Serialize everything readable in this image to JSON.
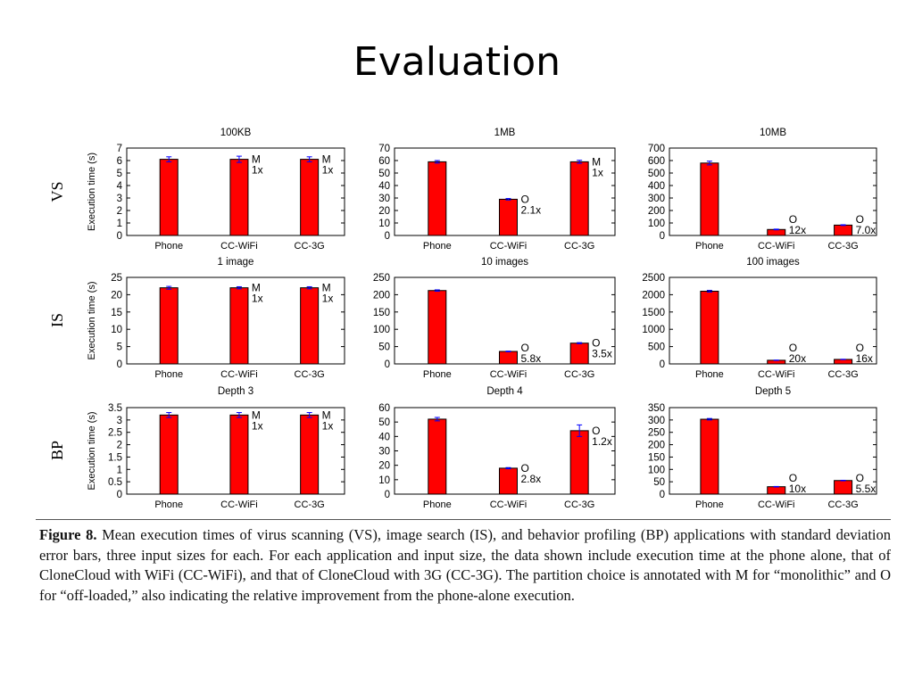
{
  "slide": {
    "title": "Evaluation"
  },
  "figure": {
    "row_labels": [
      "VS",
      "IS",
      "BP"
    ],
    "y_axis_label": "Execution time (s)",
    "caption_label": "Figure 8.",
    "caption_text": "Mean execution times of virus scanning (VS), image search (IS), and behavior profiling (BP) applications with standard deviation error bars, three input sizes for each. For each application and input size, the data shown include execution time at the phone alone, that of CloneCloud with WiFi (CC-WiFi), and that of CloneCloud with 3G (CC-3G). The partition choice is annotated with M for “monolithic” and O for “off-loaded,” also indicating the relative improvement from the phone-alone execution."
  },
  "colors": {
    "bar": "#ff0000",
    "bar_edge": "#000000",
    "error_bar": "#0000ff"
  },
  "chart_data": [
    {
      "type": "bar",
      "row": "VS",
      "title": "100KB",
      "ylabel": "Execution time (s)",
      "categories": [
        "Phone",
        "CC-WiFi",
        "CC-3G"
      ],
      "values": [
        6.1,
        6.1,
        6.1
      ],
      "errors": [
        0.2,
        0.25,
        0.2
      ],
      "ylim": [
        0,
        7
      ],
      "yticks": [
        0,
        1,
        2,
        3,
        4,
        5,
        6,
        7
      ],
      "annotations": [
        null,
        {
          "choice": "M",
          "factor": "1x"
        },
        {
          "choice": "M",
          "factor": "1x"
        }
      ]
    },
    {
      "type": "bar",
      "row": "VS",
      "title": "1MB",
      "ylabel": "",
      "categories": [
        "Phone",
        "CC-WiFi",
        "CC-3G"
      ],
      "values": [
        59,
        29,
        59
      ],
      "errors": [
        1,
        0.6,
        1.2
      ],
      "ylim": [
        0,
        70
      ],
      "yticks": [
        0,
        10,
        20,
        30,
        40,
        50,
        60,
        70
      ],
      "annotations": [
        null,
        {
          "choice": "O",
          "factor": "2.1x"
        },
        {
          "choice": "M",
          "factor": "1x"
        }
      ]
    },
    {
      "type": "bar",
      "row": "VS",
      "title": "10MB",
      "ylabel": "",
      "categories": [
        "Phone",
        "CC-WiFi",
        "CC-3G"
      ],
      "values": [
        580,
        48,
        83
      ],
      "errors": [
        15,
        3,
        3
      ],
      "ylim": [
        0,
        700
      ],
      "yticks": [
        0,
        100,
        200,
        300,
        400,
        500,
        600,
        700
      ],
      "annotations": [
        null,
        {
          "choice": "O",
          "factor": "12x"
        },
        {
          "choice": "O",
          "factor": "7.0x"
        }
      ]
    },
    {
      "type": "bar",
      "row": "IS",
      "title": "1 image",
      "ylabel": "Execution time (s)",
      "categories": [
        "Phone",
        "CC-WiFi",
        "CC-3G"
      ],
      "values": [
        22,
        22,
        22
      ],
      "errors": [
        0.4,
        0.3,
        0.3
      ],
      "ylim": [
        0,
        25
      ],
      "yticks": [
        0,
        5,
        10,
        15,
        20,
        25
      ],
      "annotations": [
        null,
        {
          "choice": "M",
          "factor": "1x"
        },
        {
          "choice": "M",
          "factor": "1x"
        }
      ]
    },
    {
      "type": "bar",
      "row": "IS",
      "title": "10 images",
      "ylabel": "",
      "categories": [
        "Phone",
        "CC-WiFi",
        "CC-3G"
      ],
      "values": [
        212,
        36,
        60
      ],
      "errors": [
        2,
        1,
        1.5
      ],
      "ylim": [
        0,
        250
      ],
      "yticks": [
        0,
        50,
        100,
        150,
        200,
        250
      ],
      "annotations": [
        null,
        {
          "choice": "O",
          "factor": "5.8x"
        },
        {
          "choice": "O",
          "factor": "3.5x"
        }
      ]
    },
    {
      "type": "bar",
      "row": "IS",
      "title": "100 images",
      "ylabel": "",
      "categories": [
        "Phone",
        "CC-WiFi",
        "CC-3G"
      ],
      "values": [
        2100,
        105,
        130
      ],
      "errors": [
        25,
        5,
        5
      ],
      "ylim": [
        0,
        2500
      ],
      "yticks": [
        0,
        500,
        1000,
        1500,
        2000,
        2500
      ],
      "annotations": [
        null,
        {
          "choice": "O",
          "factor": "20x"
        },
        {
          "choice": "O",
          "factor": "16x"
        }
      ]
    },
    {
      "type": "bar",
      "row": "BP",
      "title": "Depth 3",
      "ylabel": "Execution time (s)",
      "categories": [
        "Phone",
        "CC-WiFi",
        "CC-3G"
      ],
      "values": [
        3.2,
        3.2,
        3.2
      ],
      "errors": [
        0.1,
        0.1,
        0.1
      ],
      "ylim": [
        0,
        3.5
      ],
      "yticks": [
        0,
        0.5,
        1,
        1.5,
        2,
        2.5,
        3,
        3.5
      ],
      "annotations": [
        null,
        {
          "choice": "M",
          "factor": "1x"
        },
        {
          "choice": "M",
          "factor": "1x"
        }
      ]
    },
    {
      "type": "bar",
      "row": "BP",
      "title": "Depth 4",
      "ylabel": "",
      "categories": [
        "Phone",
        "CC-WiFi",
        "CC-3G"
      ],
      "values": [
        52,
        18,
        44
      ],
      "errors": [
        1.2,
        0.4,
        4
      ],
      "ylim": [
        0,
        60
      ],
      "yticks": [
        0,
        10,
        20,
        30,
        40,
        50,
        60
      ],
      "annotations": [
        null,
        {
          "choice": "O",
          "factor": "2.8x"
        },
        {
          "choice": "O",
          "factor": "1.2x"
        }
      ]
    },
    {
      "type": "bar",
      "row": "BP",
      "title": "Depth 5",
      "ylabel": "",
      "categories": [
        "Phone",
        "CC-WiFi",
        "CC-3G"
      ],
      "values": [
        303,
        30,
        55
      ],
      "errors": [
        3,
        1,
        1
      ],
      "ylim": [
        0,
        350
      ],
      "yticks": [
        0,
        50,
        100,
        150,
        200,
        250,
        300,
        350
      ],
      "annotations": [
        null,
        {
          "choice": "O",
          "factor": "10x"
        },
        {
          "choice": "O",
          "factor": "5.5x"
        }
      ]
    }
  ]
}
